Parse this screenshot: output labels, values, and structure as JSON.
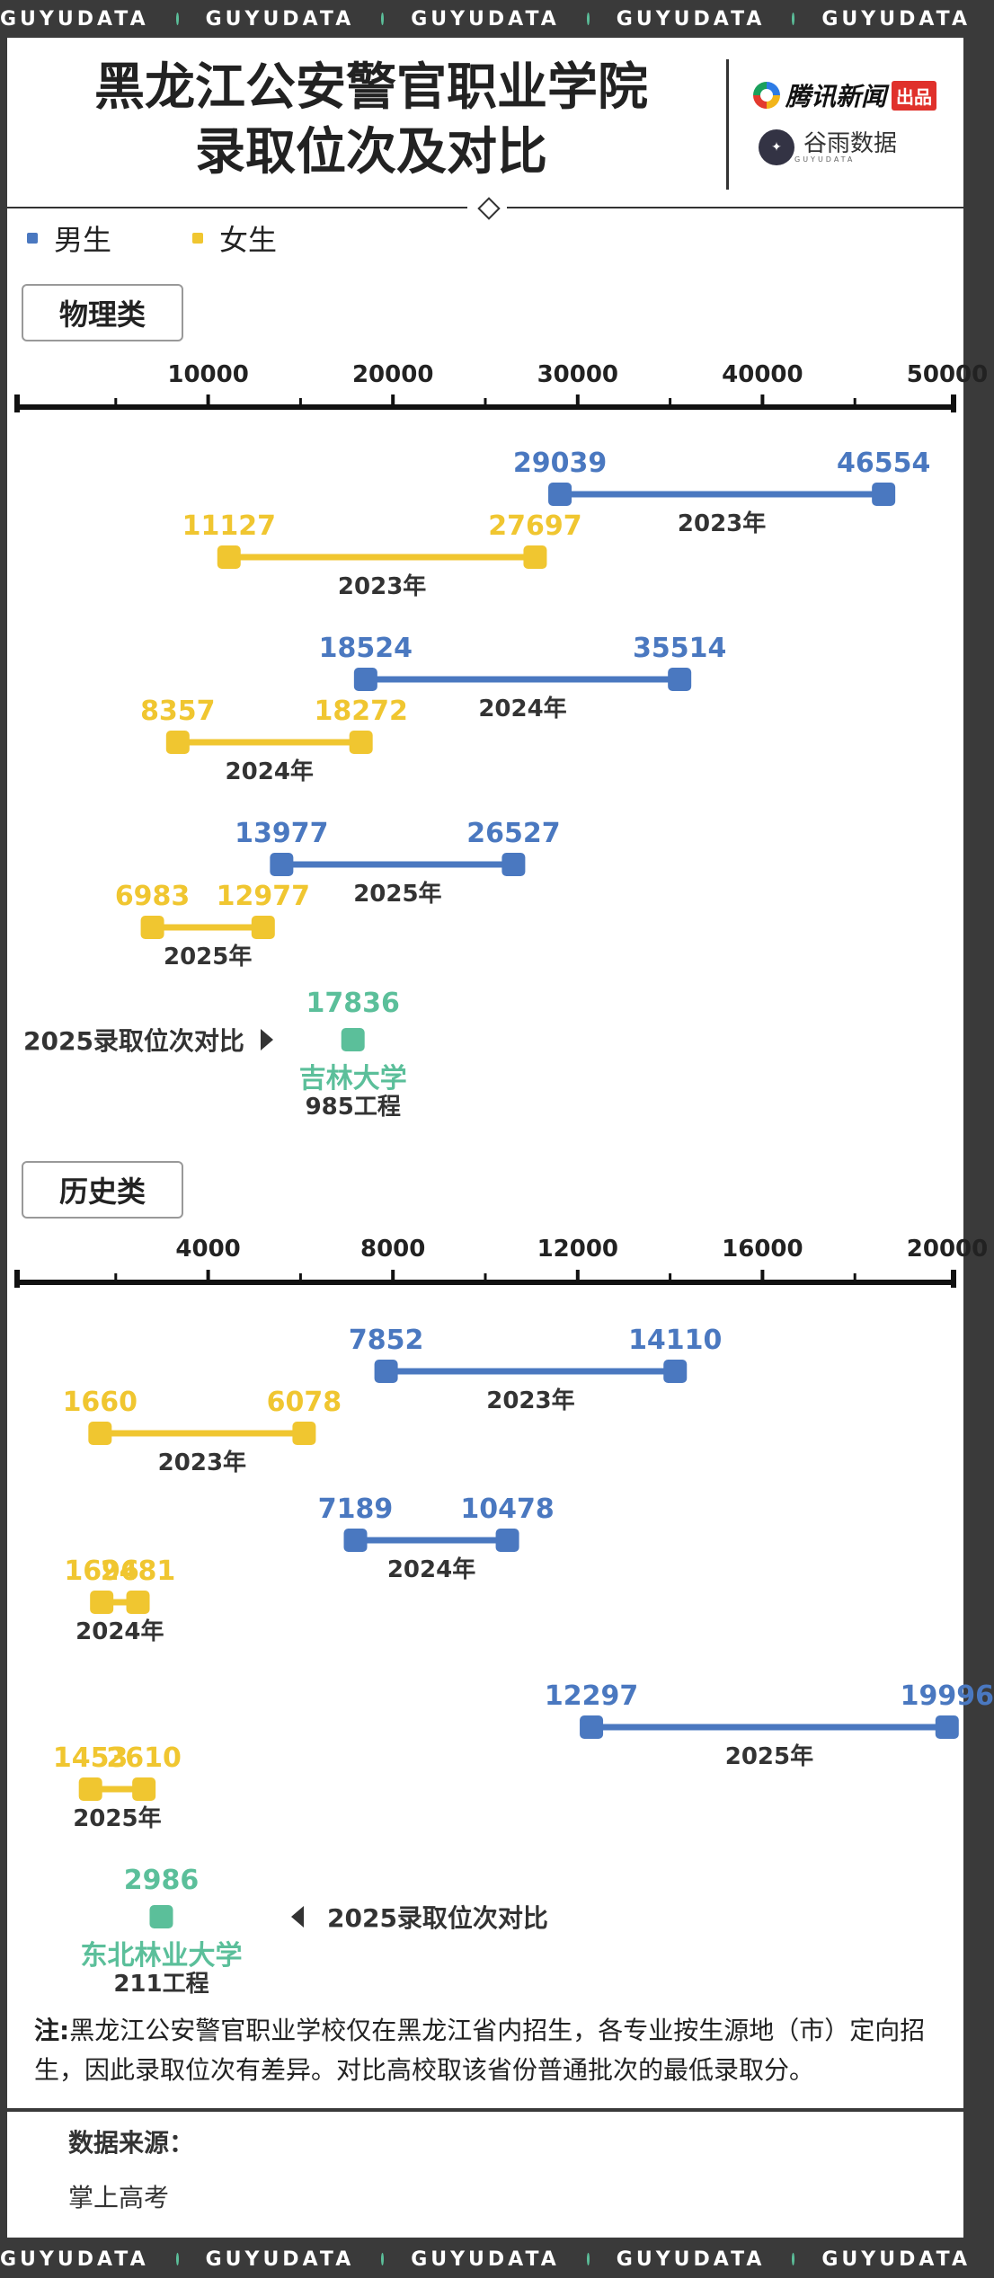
{
  "brand_bar": [
    "GUYUDATA",
    "GUYUDATA",
    "GUYUDATA",
    "GUYUDATA",
    "GUYUDATA"
  ],
  "header": {
    "title_line1": "黑龙江公安警官职业学院",
    "title_line2": "录取位次及对比",
    "logo1_name": "腾讯新闻",
    "logo1_tag": "出品",
    "logo2_name": "谷雨数据",
    "logo2_sub": "GUYUDATA"
  },
  "legend": {
    "male": "男生",
    "female": "女生"
  },
  "colors": {
    "male": "#4a78c0",
    "female": "#f0c630",
    "compare": "#5bbf9a",
    "frame": "#3a3a3a"
  },
  "chart_data": [
    {
      "type": "range",
      "section": "物理类",
      "ticks": [
        10000,
        20000,
        30000,
        40000,
        50000
      ],
      "xlim": [
        0,
        50000
      ],
      "ranges": [
        {
          "group": "男生",
          "year": "2023年",
          "low": 29039,
          "high": 46554
        },
        {
          "group": "女生",
          "year": "2023年",
          "low": 11127,
          "high": 27697
        },
        {
          "group": "男生",
          "year": "2024年",
          "low": 18524,
          "high": 35514
        },
        {
          "group": "女生",
          "year": "2024年",
          "low": 8357,
          "high": 18272
        },
        {
          "group": "男生",
          "year": "2025年",
          "low": 13977,
          "high": 26527
        },
        {
          "group": "女生",
          "year": "2025年",
          "low": 6983,
          "high": 12977
        }
      ],
      "compare": {
        "label": "2025录取位次对比",
        "value": 17836,
        "school": "吉林大学",
        "tier": "985工程"
      }
    },
    {
      "type": "range",
      "section": "历史类",
      "ticks": [
        4000,
        8000,
        12000,
        16000,
        20000
      ],
      "xlim": [
        0,
        20000
      ],
      "ranges": [
        {
          "group": "男生",
          "year": "2023年",
          "low": 7852,
          "high": 14110
        },
        {
          "group": "女生",
          "year": "2023年",
          "low": 1660,
          "high": 6078
        },
        {
          "group": "男生",
          "year": "2024年",
          "low": 7189,
          "high": 10478
        },
        {
          "group": "女生",
          "year": "2024年",
          "low": 1696,
          "high": 2481
        },
        {
          "group": "男生",
          "year": "2025年",
          "low": 12297,
          "high": 19996
        },
        {
          "group": "女生",
          "year": "2025年",
          "low": 1453,
          "high": 2610
        }
      ],
      "compare": {
        "label": "2025录取位次对比",
        "value": 2986,
        "school": "东北林业大学",
        "tier": "211工程"
      }
    }
  ],
  "note": {
    "prefix": "注:",
    "text": "黑龙江公安警官职业学校仅在黑龙江省内招生，各专业按生源地（市）定向招生，因此录取位次有差异。对比高校取该省份普通批次的最低录取分。"
  },
  "source": {
    "title": "数据来源：",
    "value": "掌上高考"
  }
}
